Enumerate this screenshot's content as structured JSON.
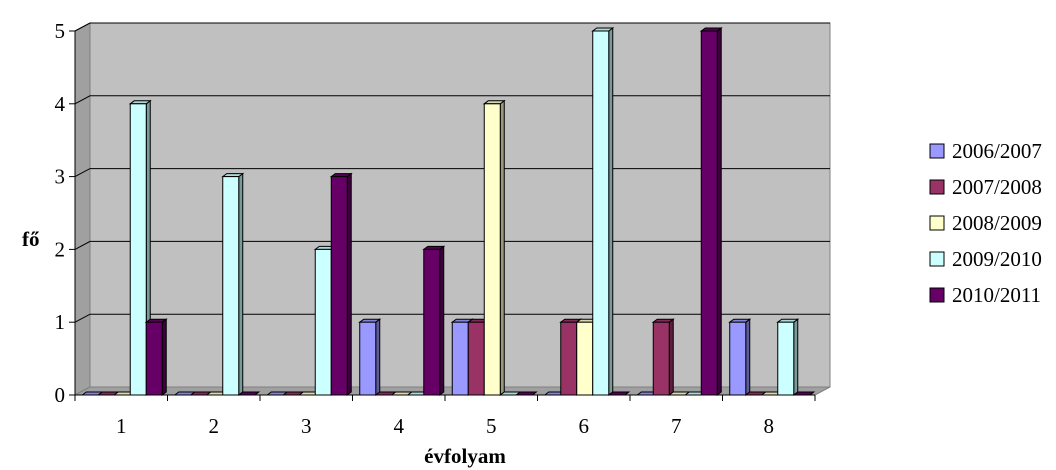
{
  "chart_data": {
    "type": "bar",
    "categories": [
      "1",
      "2",
      "3",
      "4",
      "5",
      "6",
      "7",
      "8"
    ],
    "series": [
      {
        "name": "2006/2007",
        "values": [
          0,
          0,
          0,
          1,
          1,
          0,
          0,
          1
        ],
        "color": "#9999FF"
      },
      {
        "name": "2007/2008",
        "values": [
          0,
          0,
          0,
          0,
          1,
          1,
          1,
          0
        ],
        "color": "#993366"
      },
      {
        "name": "2008/2009",
        "values": [
          0,
          0,
          0,
          0,
          4,
          1,
          0,
          0
        ],
        "color": "#FFFFCC"
      },
      {
        "name": "2009/2010",
        "values": [
          4,
          3,
          2,
          0,
          0,
          5,
          0,
          1
        ],
        "color": "#CCFFFF"
      },
      {
        "name": "2010/2011",
        "values": [
          1,
          0,
          3,
          2,
          0,
          0,
          5,
          0
        ],
        "color": "#660066"
      }
    ],
    "title": "",
    "xlabel": "évfolyam",
    "ylabel": "fő",
    "ylim": [
      0,
      5
    ],
    "yticks": [
      0,
      1,
      2,
      3,
      4,
      5
    ],
    "grid": true,
    "legend": "right",
    "plot_background": "#C0C0C0"
  }
}
